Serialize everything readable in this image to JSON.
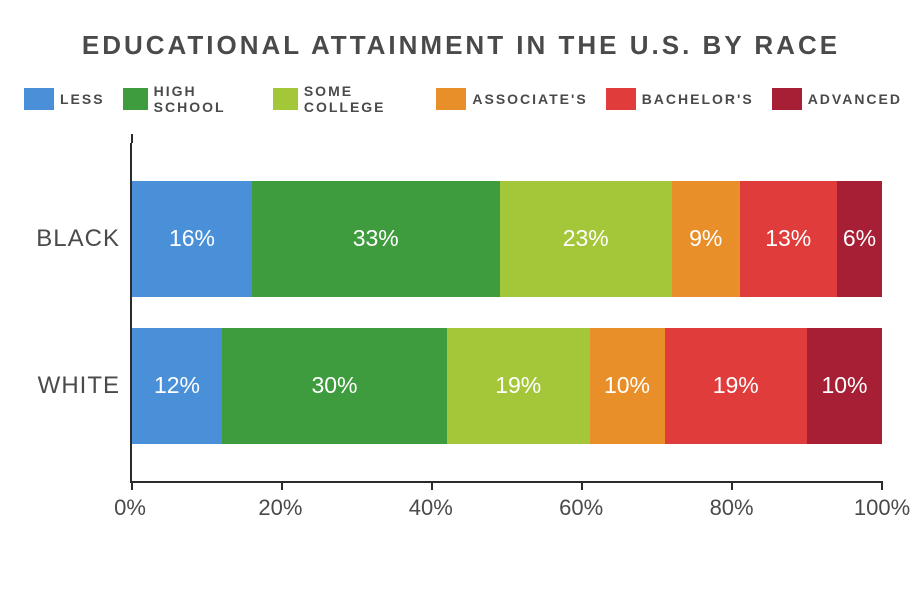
{
  "title": "EDUCATIONAL ATTAINMENT IN THE U.S. BY RACE",
  "title_color": "#4a4a4a",
  "title_fontsize": 26,
  "background_color": "#ffffff",
  "legend": [
    {
      "label": "LESS",
      "color": "#4a90d9"
    },
    {
      "label": "HIGH SCHOOL",
      "color": "#3e9b3e"
    },
    {
      "label": "SOME COLLEGE",
      "color": "#a4c639"
    },
    {
      "label": "ASSOCIATE'S",
      "color": "#e98f2a"
    },
    {
      "label": "BACHELOR'S",
      "color": "#e13c3c"
    },
    {
      "label": "ADVANCED",
      "color": "#a61f34"
    }
  ],
  "chart": {
    "type": "stacked-bar-horizontal",
    "xlim": [
      0,
      100
    ],
    "xticks": [
      0,
      20,
      40,
      60,
      80,
      100
    ],
    "xtick_labels": [
      "0%",
      "20%",
      "40%",
      "60%",
      "80%",
      "100%"
    ],
    "axis_color": "#2b2b2b",
    "label_color": "#4a4a4a",
    "value_label_color": "#ffffff",
    "value_label_fontsize": 23,
    "categories": [
      {
        "name": "BLACK",
        "segments": [
          {
            "value": 16,
            "label": "16%",
            "color": "#4a90d9"
          },
          {
            "value": 33,
            "label": "33%",
            "color": "#3e9b3e"
          },
          {
            "value": 23,
            "label": "23%",
            "color": "#a4c639"
          },
          {
            "value": 9,
            "label": "9%",
            "color": "#e98f2a"
          },
          {
            "value": 13,
            "label": "13%",
            "color": "#e13c3c"
          },
          {
            "value": 6,
            "label": "6%",
            "color": "#a61f34"
          }
        ]
      },
      {
        "name": "WHITE",
        "segments": [
          {
            "value": 12,
            "label": "12%",
            "color": "#4a90d9"
          },
          {
            "value": 30,
            "label": "30%",
            "color": "#3e9b3e"
          },
          {
            "value": 19,
            "label": "19%",
            "color": "#a4c639"
          },
          {
            "value": 10,
            "label": "10%",
            "color": "#e98f2a"
          },
          {
            "value": 19,
            "label": "19%",
            "color": "#e13c3c"
          },
          {
            "value": 10,
            "label": "10%",
            "color": "#a61f34"
          }
        ]
      }
    ]
  }
}
